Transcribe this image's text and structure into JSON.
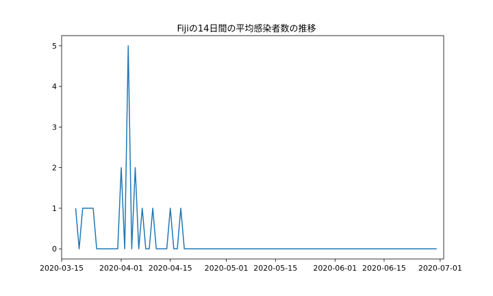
{
  "chart_data": {
    "type": "line",
    "title": "Fijiの14日間の平均感染者数の推移",
    "xlabel": "",
    "ylabel": "",
    "x_axis_type": "date",
    "xlim": [
      "2020-03-15",
      "2020-07-02"
    ],
    "ylim": [
      -0.25,
      5.25
    ],
    "grid": false,
    "line_color": "#1f77b4",
    "x_ticks": [
      "2020-03-15",
      "2020-04-01",
      "2020-04-15",
      "2020-05-01",
      "2020-05-15",
      "2020-06-01",
      "2020-06-15",
      "2020-07-01"
    ],
    "y_ticks": [
      0,
      1,
      2,
      3,
      4,
      5
    ],
    "series": [
      {
        "x": [
          "2020-03-19",
          "2020-03-20",
          "2020-03-21",
          "2020-03-22",
          "2020-03-23",
          "2020-03-24",
          "2020-03-25",
          "2020-03-26",
          "2020-03-27",
          "2020-03-28",
          "2020-03-29",
          "2020-03-30",
          "2020-03-31",
          "2020-04-01",
          "2020-04-02",
          "2020-04-03",
          "2020-04-04",
          "2020-04-05",
          "2020-04-06",
          "2020-04-07",
          "2020-04-08",
          "2020-04-09",
          "2020-04-10",
          "2020-04-11",
          "2020-04-12",
          "2020-04-13",
          "2020-04-14",
          "2020-04-15",
          "2020-04-16",
          "2020-04-17",
          "2020-04-18",
          "2020-04-19",
          "2020-04-20",
          "2020-04-21",
          "2020-04-22",
          "2020-04-23",
          "2020-06-30"
        ],
        "y": [
          1,
          0,
          1,
          1,
          1,
          1,
          0,
          0,
          0,
          0,
          0,
          0,
          0,
          2,
          0,
          5,
          0,
          2,
          0,
          1,
          0,
          0,
          1,
          0,
          0,
          0,
          0,
          1,
          0,
          0,
          1,
          0,
          0,
          0,
          0,
          0,
          0
        ]
      }
    ]
  }
}
